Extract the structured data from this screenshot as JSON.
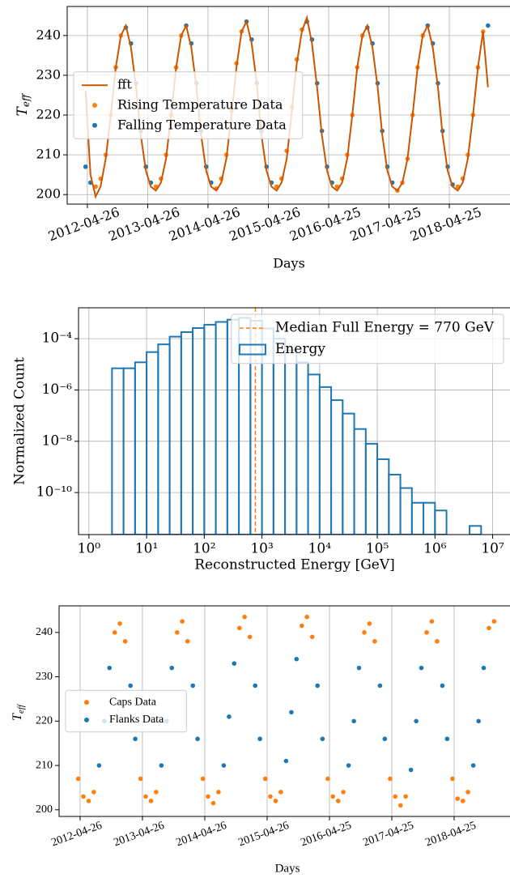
{
  "chart_data": [
    {
      "type": "scatter",
      "ylabel": "T",
      "ylabel_sub": "eff",
      "xlabel": "Days",
      "xlim": [
        "2011-12-26",
        "2019-04-27"
      ],
      "ylim": [
        197.6,
        247.3
      ],
      "xticks": [
        "2012-04-26",
        "2013-04-26",
        "2014-04-26",
        "2015-04-26",
        "2016-04-25",
        "2017-04-25",
        "2018-04-25"
      ],
      "yticks": [
        200,
        210,
        220,
        230,
        240
      ],
      "grid": true,
      "legend": "center left",
      "series": [
        {
          "name": "fft",
          "type": "line",
          "color": "#cc5500",
          "x": [
            "2012-04-15",
            "2012-05-15",
            "2012-06-15",
            "2012-07-15",
            "2012-08-15",
            "2012-09-15",
            "2012-10-15",
            "2012-11-15",
            "2012-12-15",
            "2013-01-15",
            "2013-02-15",
            "2013-03-15",
            "2013-04-15",
            "2013-05-15",
            "2013-06-15",
            "2013-07-15",
            "2013-08-15",
            "2013-09-15",
            "2013-10-15",
            "2013-11-15",
            "2013-12-15",
            "2014-01-15",
            "2014-02-15",
            "2014-03-15",
            "2014-04-15",
            "2014-05-15",
            "2014-06-15",
            "2014-07-15",
            "2014-08-15",
            "2014-09-15",
            "2014-10-15",
            "2014-11-15",
            "2014-12-15",
            "2015-01-15",
            "2015-02-15",
            "2015-03-15",
            "2015-04-15",
            "2015-05-15",
            "2015-06-15",
            "2015-07-15",
            "2015-08-15",
            "2015-09-15",
            "2015-10-15",
            "2015-11-15",
            "2015-12-15",
            "2016-01-15",
            "2016-02-15",
            "2016-03-15",
            "2016-04-15",
            "2016-05-15",
            "2016-06-15",
            "2016-07-15",
            "2016-08-15",
            "2016-09-15",
            "2016-10-15",
            "2016-11-15",
            "2016-12-15",
            "2017-01-15",
            "2017-02-15",
            "2017-03-15",
            "2017-04-15",
            "2017-05-15",
            "2017-06-15",
            "2017-07-15",
            "2017-08-15",
            "2017-09-15",
            "2017-10-15",
            "2017-11-15",
            "2017-12-15",
            "2018-01-15",
            "2018-02-15",
            "2018-03-15",
            "2018-04-15",
            "2018-05-15",
            "2018-06-15",
            "2018-07-15",
            "2018-08-15",
            "2018-09-15",
            "2018-10-15",
            "2018-11-15",
            "2018-12-15"
          ],
          "values": [
            226,
            205,
            199.5,
            202,
            209,
            220,
            232,
            240,
            242.5,
            237,
            227,
            215,
            206,
            202,
            201,
            203,
            209,
            220,
            232,
            240,
            242.5,
            237,
            227,
            215,
            206,
            202,
            201,
            203,
            209,
            220,
            232,
            241,
            243.5,
            238,
            228,
            215,
            206,
            202,
            201,
            203,
            209,
            221,
            233,
            241,
            244.5,
            238,
            227,
            215,
            206,
            202,
            201,
            203,
            209,
            220,
            232,
            240,
            242.5,
            237,
            227,
            215,
            206,
            202,
            201,
            203,
            209,
            220,
            232,
            240,
            242.5,
            237,
            227,
            215,
            206,
            202,
            201,
            203,
            209,
            220,
            232,
            241,
            227
          ]
        },
        {
          "name": "Rising Temperature Data",
          "type": "scatter",
          "color": "#ff7f0e",
          "x": [
            "2012-06-15",
            "2012-07-15",
            "2012-08-15",
            "2012-09-15",
            "2012-10-15",
            "2012-11-15",
            "2013-06-15",
            "2013-07-15",
            "2013-08-15",
            "2013-09-15",
            "2013-10-15",
            "2013-11-15",
            "2014-06-15",
            "2014-07-15",
            "2014-08-15",
            "2014-09-15",
            "2014-10-15",
            "2014-11-15",
            "2015-06-15",
            "2015-07-15",
            "2015-08-15",
            "2015-09-15",
            "2015-10-15",
            "2015-11-15",
            "2016-06-15",
            "2016-07-15",
            "2016-08-15",
            "2016-09-15",
            "2016-10-15",
            "2016-11-15",
            "2017-06-15",
            "2017-07-15",
            "2017-08-15",
            "2017-09-15",
            "2017-10-15",
            "2017-11-15",
            "2018-06-15",
            "2018-07-15",
            "2018-08-15",
            "2018-09-15",
            "2018-10-15",
            "2018-11-15"
          ],
          "values": [
            202,
            204,
            210,
            220,
            232,
            240,
            202,
            204,
            210,
            220,
            232,
            240,
            201.5,
            204,
            210,
            221,
            233,
            241,
            202,
            204,
            211,
            222,
            234,
            241.5,
            202,
            204,
            210,
            220,
            232,
            240,
            201,
            203,
            209,
            220,
            232,
            240,
            202,
            204,
            210,
            220,
            232,
            241
          ]
        },
        {
          "name": "Falling Temperature Data",
          "type": "scatter",
          "color": "#1f77b4",
          "x": [
            "2012-04-15",
            "2012-05-15",
            "2012-12-15",
            "2013-01-15",
            "2013-02-15",
            "2013-03-15",
            "2013-04-15",
            "2013-05-15",
            "2013-12-15",
            "2014-01-15",
            "2014-02-15",
            "2014-03-15",
            "2014-04-15",
            "2014-05-15",
            "2014-12-15",
            "2015-01-15",
            "2015-02-15",
            "2015-03-15",
            "2015-04-15",
            "2015-05-15",
            "2015-12-15",
            "2016-01-15",
            "2016-02-15",
            "2016-03-15",
            "2016-04-15",
            "2016-05-15",
            "2016-12-15",
            "2017-01-15",
            "2017-02-15",
            "2017-03-15",
            "2017-04-15",
            "2017-05-15",
            "2017-12-15",
            "2018-01-15",
            "2018-02-15",
            "2018-03-15",
            "2018-04-15",
            "2018-05-15",
            "2018-12-15"
          ],
          "values": [
            207,
            203,
            242,
            238,
            228,
            216,
            207,
            203,
            242.5,
            238,
            228,
            216,
            207,
            203,
            243.5,
            239,
            228,
            216,
            207,
            203,
            243.5,
            239,
            228,
            216,
            207,
            203,
            242,
            238,
            228,
            216,
            207,
            203,
            242.5,
            238,
            228,
            216,
            207,
            202.5,
            242.5
          ]
        }
      ]
    },
    {
      "type": "histogram",
      "ylabel": "Normalized Count",
      "xlabel": "Reconstructed Energy [GeV]",
      "xscale": "log",
      "yscale": "log",
      "grid": true,
      "legend": "upper right",
      "xlim": [
        0.66,
        20000000
      ],
      "ylim": [
        2.3e-12,
        0.0016
      ],
      "xticks": [
        {
          "value": 1,
          "label": "10⁰"
        },
        {
          "value": 10,
          "label": "10¹"
        },
        {
          "value": 100,
          "label": "10²"
        },
        {
          "value": 1000,
          "label": "10³"
        },
        {
          "value": 10000,
          "label": "10⁴"
        },
        {
          "value": 100000,
          "label": "10⁵"
        },
        {
          "value": 1000000,
          "label": "10⁶"
        },
        {
          "value": 10000000,
          "label": "10⁷"
        }
      ],
      "yticks": [
        {
          "value": 1e-10,
          "label": "10⁻¹⁰"
        },
        {
          "value": 1e-08,
          "label": "10⁻⁸"
        },
        {
          "value": 1e-06,
          "label": "10⁻⁶"
        },
        {
          "value": 0.0001,
          "label": "10⁻⁴"
        }
      ],
      "median": {
        "name": "Median Full Energy = 770 GeV",
        "value": 770,
        "color": "#ff7f0e"
      },
      "name": "Energy",
      "color": "#1f77b4",
      "bins": [
        2.512,
        3.981,
        6.31,
        10,
        15.85,
        25.12,
        39.81,
        63.1,
        100,
        158.5,
        251.2,
        398.1,
        631,
        1000,
        1585,
        2512,
        3981,
        6310,
        10000,
        15849,
        25119,
        39811,
        63096,
        100000,
        158489,
        251189,
        398107,
        630957,
        1000000,
        1584893,
        2511886,
        3981072,
        6309573
      ],
      "counts": [
        7e-06,
        7e-06,
        1.2e-05,
        3e-05,
        6e-05,
        0.00012,
        0.00018,
        0.00026,
        0.00035,
        0.00045,
        0.00055,
        0.00065,
        0.0005,
        0.00025,
        0.0001,
        3.5e-05,
        1.2e-05,
        4e-06,
        1.3e-06,
        4e-07,
        1.2e-07,
        3e-08,
        8e-09,
        2e-09,
        5e-10,
        1.5e-10,
        4e-11,
        4e-11,
        2e-11,
        0,
        0,
        5e-12
      ]
    },
    {
      "type": "scatter",
      "ylabel": "T",
      "ylabel_sub": "eff",
      "xlabel": "Days",
      "xlim": [
        "2011-12-25",
        "2019-03-18"
      ],
      "ylim": [
        198.5,
        246
      ],
      "xticks": [
        "2012-04-26",
        "2013-04-26",
        "2014-04-26",
        "2015-04-26",
        "2016-04-25",
        "2017-04-25",
        "2018-04-25"
      ],
      "yticks": [
        200,
        210,
        220,
        230,
        240
      ],
      "grid": "x",
      "legend": "center left",
      "series": [
        {
          "name": "Caps Data",
          "type": "scatter",
          "color": "#ff7f0e",
          "x": [
            "2012-04-15",
            "2012-05-15",
            "2012-06-15",
            "2012-07-15",
            "2012-11-15",
            "2012-12-15",
            "2013-01-15",
            "2013-04-15",
            "2013-05-15",
            "2013-06-15",
            "2013-07-15",
            "2013-11-15",
            "2013-12-15",
            "2014-01-15",
            "2014-04-15",
            "2014-05-15",
            "2014-06-15",
            "2014-07-15",
            "2014-11-15",
            "2014-12-15",
            "2015-01-15",
            "2015-04-15",
            "2015-05-15",
            "2015-06-15",
            "2015-07-15",
            "2015-11-15",
            "2015-12-15",
            "2016-01-15",
            "2016-04-15",
            "2016-05-15",
            "2016-06-15",
            "2016-07-15",
            "2016-11-15",
            "2016-12-15",
            "2017-01-15",
            "2017-04-15",
            "2017-05-15",
            "2017-06-15",
            "2017-07-15",
            "2017-11-15",
            "2017-12-15",
            "2018-01-15",
            "2018-04-15",
            "2018-05-15",
            "2018-06-15",
            "2018-07-15",
            "2018-11-15",
            "2018-12-15"
          ],
          "values": [
            207,
            203,
            202,
            204,
            240,
            242,
            238,
            207,
            203,
            202,
            204,
            240,
            242.5,
            238,
            207,
            203,
            201.5,
            204,
            241,
            243.5,
            239,
            207,
            203,
            202,
            204,
            241.5,
            243.5,
            239,
            207,
            203,
            202,
            204,
            240,
            242,
            238,
            207,
            203,
            201,
            203,
            240,
            242.5,
            238,
            207,
            202.5,
            202,
            204,
            241,
            242.5
          ]
        },
        {
          "name": "Flanks Data",
          "type": "scatter",
          "color": "#1f77b4",
          "x": [
            "2012-08-15",
            "2012-09-15",
            "2012-10-15",
            "2013-02-15",
            "2013-03-15",
            "2013-08-15",
            "2013-09-15",
            "2013-10-15",
            "2014-02-15",
            "2014-03-15",
            "2014-08-15",
            "2014-09-15",
            "2014-10-15",
            "2015-02-15",
            "2015-03-15",
            "2015-08-15",
            "2015-09-15",
            "2015-10-15",
            "2016-02-15",
            "2016-03-15",
            "2016-08-15",
            "2016-09-15",
            "2016-10-15",
            "2017-02-15",
            "2017-03-15",
            "2017-08-15",
            "2017-09-15",
            "2017-10-15",
            "2018-02-15",
            "2018-03-15",
            "2018-08-15",
            "2018-09-15",
            "2018-10-15"
          ],
          "values": [
            210,
            220,
            232,
            228,
            216,
            210,
            220,
            232,
            228,
            216,
            210,
            221,
            233,
            228,
            216,
            211,
            222,
            234,
            228,
            216,
            210,
            220,
            232,
            228,
            216,
            209,
            220,
            232,
            228,
            216,
            210,
            220,
            232
          ]
        }
      ]
    }
  ]
}
